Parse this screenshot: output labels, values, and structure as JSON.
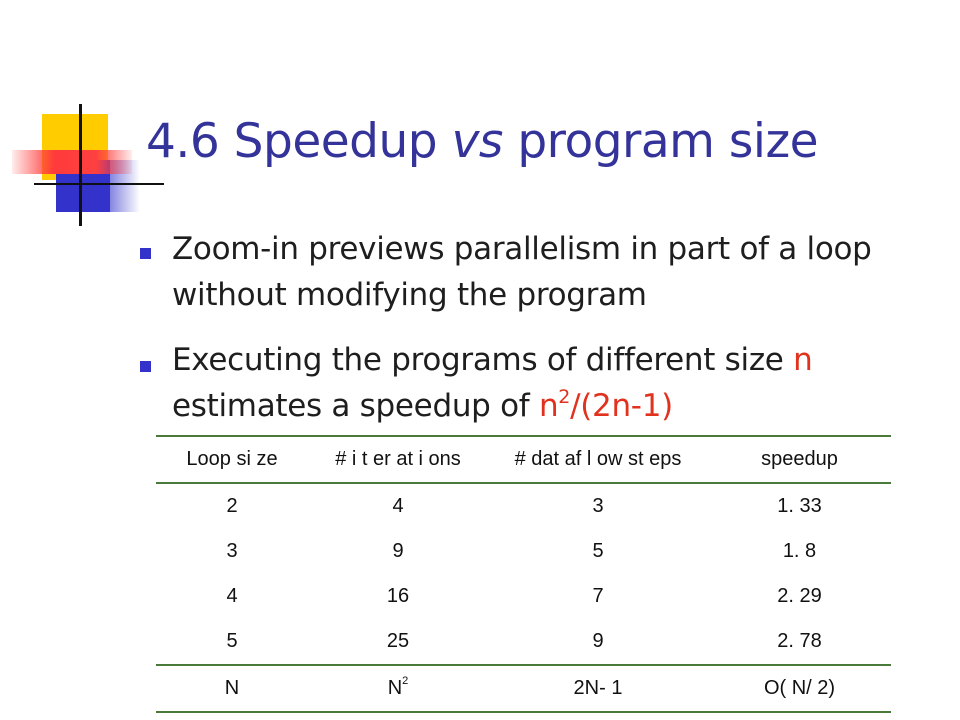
{
  "slide": {
    "title_prefix": "4.6 Speedup ",
    "title_italic": "vs",
    "title_suffix": " program size",
    "bullets": [
      {
        "text": "Zoom-in previews parallelism in part of a loop without modifying the program"
      },
      {
        "text_before": "Executing the programs of different size ",
        "var_n": "n",
        "text_middle": " estimates a speedup of ",
        "formula_base": "n",
        "formula_exp": "2",
        "formula_tail": "/(2n-1)"
      }
    ]
  },
  "table": {
    "headers": [
      "Loop si ze",
      "# i t er at i ons",
      "# dat af l ow st eps",
      "speedup"
    ],
    "rows": [
      [
        "2",
        "4",
        "3",
        "1. 33"
      ],
      [
        "3",
        "9",
        "5",
        "1. 8"
      ],
      [
        "4",
        "16",
        "7",
        "2. 29"
      ],
      [
        "5",
        "25",
        "9",
        "2. 78"
      ]
    ],
    "summary_row": {
      "loop_size": "N",
      "iterations_base": "N",
      "iterations_exp": "2",
      "dataflow_steps": "2N- 1",
      "speedup": "O( N/ 2)"
    }
  },
  "colors": {
    "title": "#333399",
    "accent_red": "#e0321e",
    "bullet": "#3333cc",
    "table_rule": "#4a7a3a",
    "deco_yellow": "#ffcc00",
    "deco_blue": "#3333cc",
    "deco_red": "#ff3b3b"
  }
}
